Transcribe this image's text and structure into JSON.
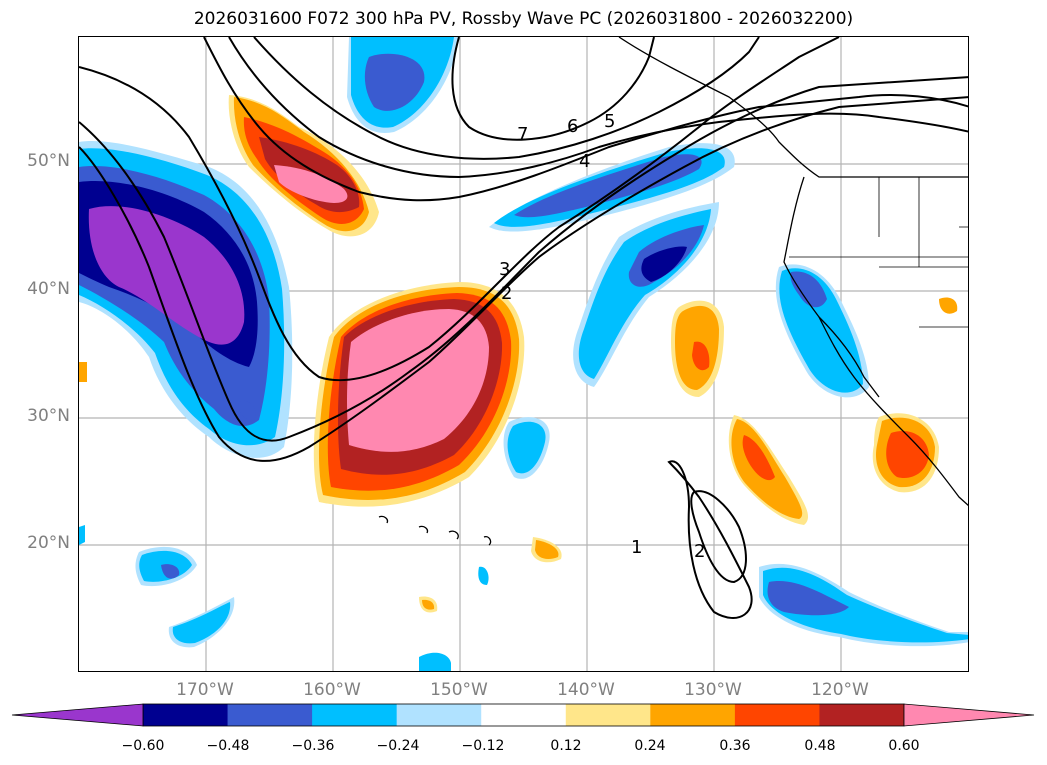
{
  "title": "2026031600 F072 300 hPa PV, Rossby Wave PC (2026031800 - 2026032200)",
  "lat_labels": [
    "50°N",
    "40°N",
    "30°N",
    "20°N"
  ],
  "lon_labels": [
    "170°W",
    "160°W",
    "150°W",
    "140°W",
    "130°W",
    "120°W"
  ],
  "contour_labels": [
    "7",
    "6",
    "5",
    "4",
    "3",
    "2",
    "1",
    "2"
  ],
  "colorbar": {
    "ticks": [
      "−0.60",
      "−0.48",
      "−0.36",
      "−0.24",
      "−0.12",
      "0.12",
      "0.24",
      "0.36",
      "0.48",
      "0.60"
    ],
    "colors": [
      "#9a36cd",
      "#000090",
      "#3a5bd0",
      "#00bfff",
      "#b0e2ff",
      "#ffffff",
      "#ffe68a",
      "#ffa500",
      "#ff4500",
      "#b22222",
      "#ff88b0"
    ]
  }
}
